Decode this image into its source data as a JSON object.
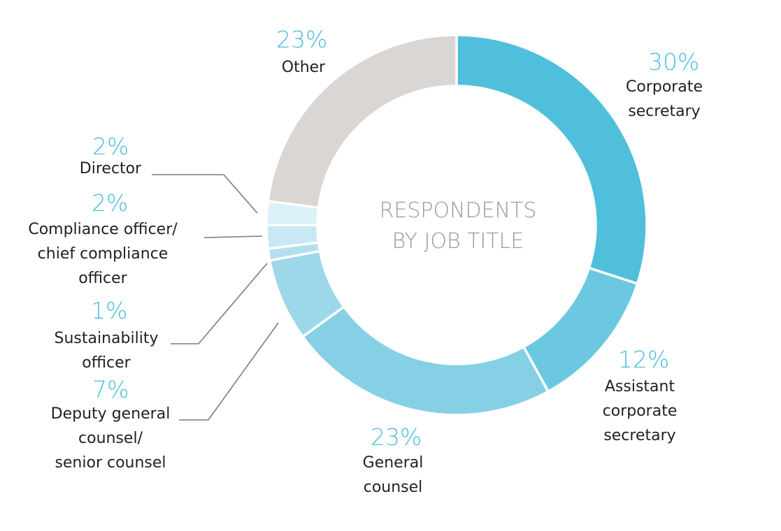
{
  "chart_data": {
    "type": "pie",
    "title": "RESPONDENTS\nBY JOB TITLE",
    "slices": [
      {
        "label": "Corporate\nsecretary",
        "value_label": "30%",
        "value": 30,
        "color": "#4fbfdc"
      },
      {
        "label": "Assistant\ncorporate\nsecretary",
        "value_label": "12%",
        "value": 12,
        "color": "#6cc8e1"
      },
      {
        "label": "General\ncounsel",
        "value_label": "23%",
        "value": 23,
        "color": "#86d0e5"
      },
      {
        "label": "Deputy general\ncounsel/\nsenior counsel",
        "value_label": "7%",
        "value": 7,
        "color": "#9dd7ea"
      },
      {
        "label": "Sustainability\nofficer",
        "value_label": "1%",
        "value": 1,
        "color": "#b4dfef"
      },
      {
        "label": "Compliance officer/\nchief compliance\nofficer",
        "value_label": "2%",
        "value": 2,
        "color": "#c8e8f4"
      },
      {
        "label": "Director",
        "value_label": "2%",
        "value": 2,
        "color": "#dcf0f8"
      },
      {
        "label": "Other",
        "value_label": "23%",
        "value": 23,
        "color": "#d9d6d4"
      }
    ]
  }
}
